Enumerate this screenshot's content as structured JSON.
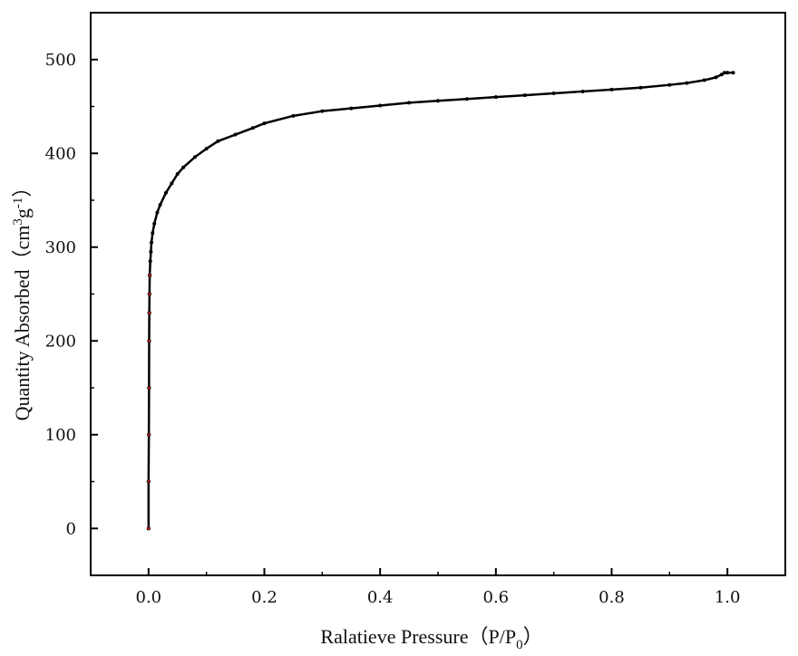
{
  "chart_data": {
    "type": "scatter",
    "title": "",
    "xlabel": {
      "main": "Ralatieve Pressure（P/P",
      "sub": "0",
      "close": "）"
    },
    "ylabel": {
      "main": "Quantity Absorbed（cm",
      "sup1": "3",
      "mid": "g",
      "sup2": "-1",
      "close": "）"
    },
    "xlim": [
      -0.1,
      1.1
    ],
    "ylim": [
      -50,
      550
    ],
    "xticks": [
      0.0,
      0.2,
      0.4,
      0.6,
      0.8,
      1.0
    ],
    "xtick_labels": [
      "0.0",
      "0.2",
      "0.4",
      "0.6",
      "0.8",
      "1.0"
    ],
    "yticks": [
      0,
      100,
      200,
      300,
      400,
      500
    ],
    "ytick_labels": [
      "0",
      "100",
      "200",
      "300",
      "400",
      "500"
    ],
    "grid": false,
    "legend": "none",
    "colors": {
      "line": "#000000",
      "marker_inner": "#cc2222"
    },
    "series": [
      {
        "x": [
          0.0,
          0.0,
          0.0005,
          0.0008,
          0.001,
          0.0013,
          0.0016,
          0.002,
          0.003,
          0.004,
          0.005,
          0.007,
          0.01,
          0.015,
          0.02,
          0.03,
          0.04,
          0.05,
          0.06,
          0.08,
          0.1,
          0.12,
          0.15,
          0.18,
          0.2,
          0.25,
          0.3,
          0.35,
          0.4,
          0.45,
          0.5,
          0.55,
          0.6,
          0.65,
          0.7,
          0.75,
          0.8,
          0.85,
          0.9,
          0.93,
          0.96,
          0.98,
          0.99,
          0.995,
          1.0,
          1.01
        ],
        "y": [
          0,
          50,
          100,
          150,
          200,
          230,
          250,
          270,
          285,
          295,
          305,
          315,
          325,
          337,
          345,
          358,
          368,
          378,
          385,
          396,
          405,
          413,
          420,
          427,
          432,
          440,
          445,
          448,
          451,
          454,
          456,
          458,
          460,
          462,
          464,
          466,
          468,
          470,
          473,
          475,
          478,
          481,
          484,
          486,
          486,
          486
        ]
      }
    ]
  }
}
